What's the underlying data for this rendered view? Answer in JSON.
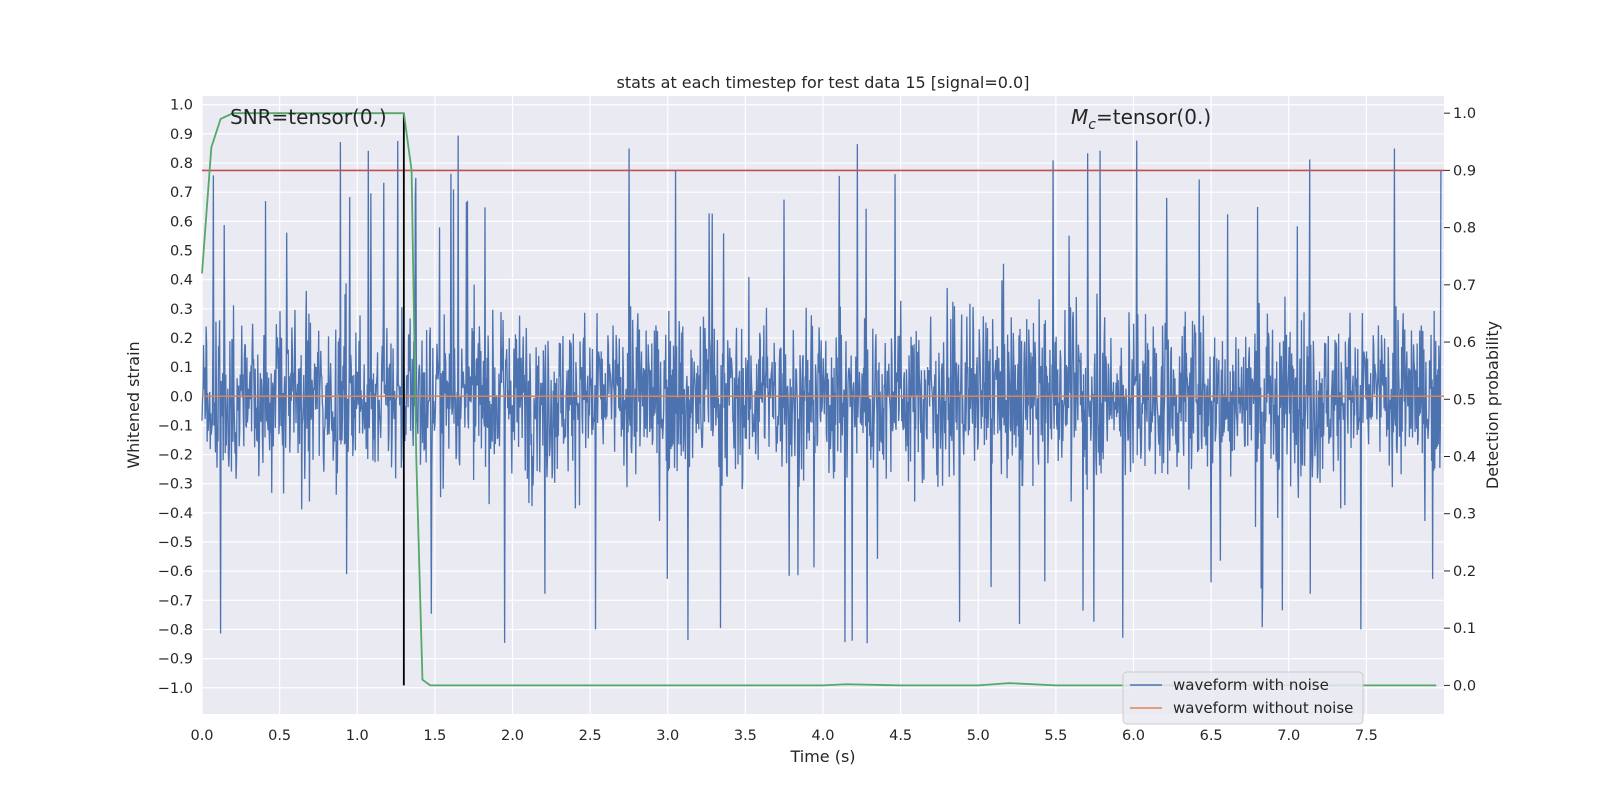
{
  "chart_data": {
    "type": "line",
    "title": "stats at each timestep for test data 15 [signal=0.0]",
    "xlabel": "Time (s)",
    "ylabel_left": "Whitened strain",
    "ylabel_right": "Detection probability",
    "xlim": [
      0.0,
      8.0
    ],
    "ylim_left": [
      -1.09,
      1.03
    ],
    "ylim_right": [
      -0.05,
      1.03
    ],
    "x_ticks": [
      "0.0",
      "0.5",
      "1.0",
      "1.5",
      "2.0",
      "2.5",
      "3.0",
      "3.5",
      "4.0",
      "4.5",
      "5.0",
      "5.5",
      "6.0",
      "6.5",
      "7.0",
      "7.5"
    ],
    "x_tick_values": [
      0.0,
      0.5,
      1.0,
      1.5,
      2.0,
      2.5,
      3.0,
      3.5,
      4.0,
      4.5,
      5.0,
      5.5,
      6.0,
      6.5,
      7.0,
      7.5
    ],
    "y_left_ticks": [
      "1.0",
      "0.9",
      "0.8",
      "0.7",
      "0.6",
      "0.5",
      "0.4",
      "0.3",
      "0.2",
      "0.1",
      "0.0",
      "−0.1",
      "−0.2",
      "−0.3",
      "−0.4",
      "−0.5",
      "−0.6",
      "−0.7",
      "−0.8",
      "−0.9",
      "−1.0"
    ],
    "y_left_tick_values": [
      1.0,
      0.9,
      0.8,
      0.7,
      0.6,
      0.5,
      0.4,
      0.3,
      0.2,
      0.1,
      0.0,
      -0.1,
      -0.2,
      -0.3,
      -0.4,
      -0.5,
      -0.6,
      -0.7,
      -0.8,
      -0.9,
      -1.0
    ],
    "y_right_ticks": [
      "1.0",
      "0.9",
      "0.8",
      "0.7",
      "0.6",
      "0.5",
      "0.4",
      "0.3",
      "0.2",
      "0.1",
      "0.0"
    ],
    "y_right_tick_values": [
      1.0,
      0.9,
      0.8,
      0.7,
      0.6,
      0.5,
      0.4,
      0.3,
      0.2,
      0.1,
      0.0
    ],
    "annotations": {
      "snr": "SNR=tensor(0.)",
      "mc_symbol": "M",
      "mc_sub": "c",
      "mc_value": "=tensor(0.)"
    },
    "series": [
      {
        "name": "waveform with noise",
        "color": "#4c72b0",
        "axis": "left",
        "kind": "noise",
        "approx_envelope_max": 0.93,
        "approx_envelope_min": -0.9
      },
      {
        "name": "waveform without noise",
        "color": "#dd8452",
        "axis": "left",
        "value": 0.0
      },
      {
        "name": "detection probability",
        "color": "#55a868",
        "axis": "right",
        "x": [
          0.0,
          0.06,
          0.12,
          0.2,
          0.4,
          0.8,
          1.2,
          1.3,
          1.35,
          1.38,
          1.42,
          1.47,
          1.55,
          2.0,
          3.0,
          4.0,
          4.15,
          4.5,
          5.0,
          5.2,
          5.5,
          6.0,
          7.0,
          7.95
        ],
        "y": [
          0.72,
          0.94,
          0.99,
          1.0,
          1.0,
          1.0,
          1.0,
          1.0,
          0.9,
          0.4,
          0.01,
          0.0,
          0.0,
          0.0,
          0.0,
          0.0,
          0.002,
          0.0,
          0.0,
          0.004,
          0.0,
          0.0,
          0.0,
          0.0
        ]
      }
    ],
    "threshold_right": 0.9,
    "threshold_color": "#c44e52",
    "detection_time": 1.3,
    "legend": {
      "placement": "bottom-right",
      "entries": [
        "waveform with noise",
        "waveform without noise"
      ]
    }
  }
}
